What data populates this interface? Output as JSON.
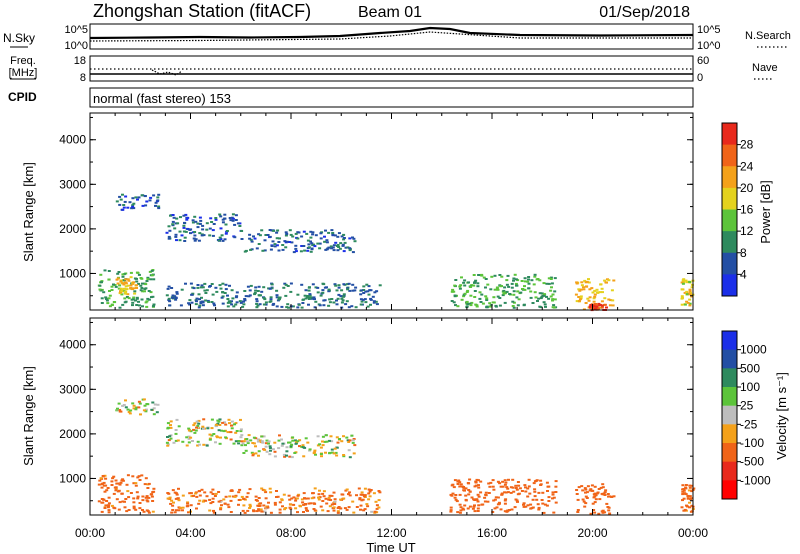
{
  "header": {
    "station": "Zhongshan Station (fitACF)",
    "beam": "Beam 01",
    "date": "01/Sep/2018"
  },
  "top_strip": {
    "left_label": "N.Sky",
    "left_ticks": [
      "10^5",
      "10^0"
    ],
    "right_ticks": [
      "10^5",
      "10^0"
    ],
    "right_label": "N.Search"
  },
  "freq_strip": {
    "label_line1": "Freq.",
    "label_line2": "[MHz]",
    "left_ticks": [
      "18",
      "8"
    ],
    "right_ticks": [
      "60",
      "0"
    ],
    "right_label": "Nave"
  },
  "cpid": {
    "label": "CPID",
    "value": "normal (fast stereo) 153"
  },
  "power_panel": {
    "ylabel": "Slant Range [km]",
    "yticks": [
      "4000",
      "3000",
      "2000",
      "1000"
    ],
    "colorbar_label": "Power [dB]",
    "colorbar_ticks": [
      "28",
      "24",
      "20",
      "16",
      "12",
      "8",
      "4"
    ],
    "colorbar_colors": [
      "#e8291c",
      "#f06418",
      "#f4a11a",
      "#e4d21e",
      "#5cc43a",
      "#2e8a5e",
      "#234fa4",
      "#1b2fe8"
    ]
  },
  "velocity_panel": {
    "ylabel": "Slant Range [km]",
    "yticks": [
      "4000",
      "3000",
      "2000",
      "1000"
    ],
    "colorbar_label": "Velocity [m s⁻¹]",
    "colorbar_ticks": [
      "1000",
      "500",
      "100",
      "25",
      "-25",
      "-100",
      "-500",
      "-1000"
    ],
    "colorbar_colors": [
      "#1b2fe8",
      "#234fa4",
      "#2e8a5e",
      "#5cc43a",
      "#bdbdbd",
      "#f4a11a",
      "#f06418",
      "#e8291c",
      "#ff0000"
    ]
  },
  "xaxis": {
    "label": "Time UT",
    "ticks": [
      "00:00",
      "04:00",
      "08:00",
      "12:00",
      "16:00",
      "20:00",
      "00:00"
    ]
  },
  "chart_data": [
    {
      "type": "heatmap",
      "title": "Power",
      "xlabel": "Time UT",
      "ylabel": "Slant Range [km]",
      "xlim": [
        0,
        24
      ],
      "ylim": [
        180,
        4600
      ],
      "zlabel": "Power [dB]",
      "zlim": [
        0,
        32
      ],
      "regions": [
        {
          "t": [
            0.3,
            2.5
          ],
          "r": [
            250,
            1100
          ],
          "power": 12
        },
        {
          "t": [
            1.0,
            1.8
          ],
          "r": [
            550,
            950
          ],
          "power": 20
        },
        {
          "t": [
            1.0,
            2.7
          ],
          "r": [
            2450,
            2800
          ],
          "power": 6
        },
        {
          "t": [
            3.0,
            6.0
          ],
          "r": [
            1750,
            2350
          ],
          "power": 6
        },
        {
          "t": [
            6.0,
            10.5
          ],
          "r": [
            1500,
            2000
          ],
          "power": 7
        },
        {
          "t": [
            3.0,
            11.5
          ],
          "r": [
            250,
            800
          ],
          "power": 8
        },
        {
          "t": [
            14.3,
            18.5
          ],
          "r": [
            250,
            1000
          ],
          "power": 12
        },
        {
          "t": [
            19.3,
            20.8
          ],
          "r": [
            200,
            900
          ],
          "power": 20
        },
        {
          "t": [
            19.8,
            20.5
          ],
          "r": [
            200,
            350
          ],
          "power": 28
        },
        {
          "t": [
            23.5,
            24.0
          ],
          "r": [
            250,
            900
          ],
          "power": 18
        }
      ]
    },
    {
      "type": "heatmap",
      "title": "Velocity",
      "xlabel": "Time UT",
      "ylabel": "Slant Range [km]",
      "xlim": [
        0,
        24
      ],
      "ylim": [
        180,
        4600
      ],
      "zlabel": "Velocity [m s⁻¹]",
      "zlim": [
        -1000,
        1000
      ],
      "regions": [
        {
          "t": [
            0.3,
            2.5
          ],
          "r": [
            250,
            1100
          ],
          "velocity": -200
        },
        {
          "t": [
            1.0,
            2.7
          ],
          "r": [
            2450,
            2800
          ],
          "velocity": 0
        },
        {
          "t": [
            3.0,
            6.0
          ],
          "r": [
            1750,
            2350
          ],
          "velocity": 0
        },
        {
          "t": [
            6.0,
            10.5
          ],
          "r": [
            1500,
            2000
          ],
          "velocity": 0
        },
        {
          "t": [
            3.0,
            11.5
          ],
          "r": [
            250,
            800
          ],
          "velocity": -150
        },
        {
          "t": [
            14.3,
            18.5
          ],
          "r": [
            250,
            1000
          ],
          "velocity": -300
        },
        {
          "t": [
            19.3,
            20.8
          ],
          "r": [
            200,
            900
          ],
          "velocity": -300
        },
        {
          "t": [
            23.5,
            24.0
          ],
          "r": [
            250,
            900
          ],
          "velocity": -200
        }
      ]
    }
  ]
}
